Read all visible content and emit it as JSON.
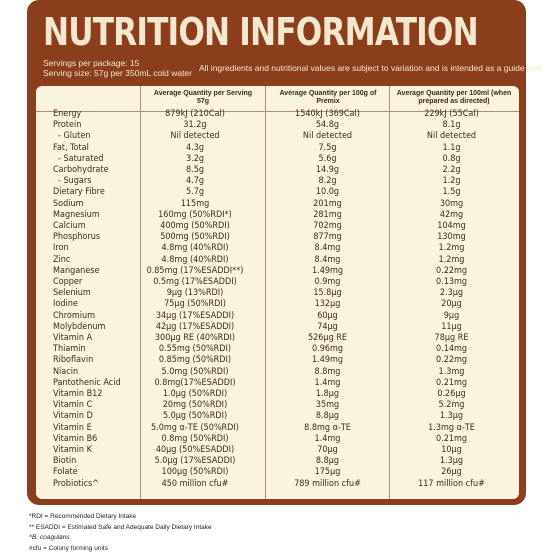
{
  "title": "NUTRITION INFORMATION",
  "servings_per_package": "Servings per package: 15",
  "serving_size": "Serving size: 57g per 350mL cold water",
  "disclaimer": "All ingredients and nutritional values are subject to variation and is intended as a guide only.",
  "colors": {
    "brand_brown": "#8a3e1c",
    "panel_cream": "#faf3df",
    "title_cream": "#f3e7cf"
  },
  "columns": [
    "Average Quantity per Serving 57g",
    "Average Quantity per 100g of Premix",
    "Average Quantity per 100ml (when prepared as directed)"
  ],
  "rows": [
    [
      "Energy",
      "879kJ (210Cal)",
      "1540kJ (369Cal)",
      "229kJ (55Cal)"
    ],
    [
      "Protein",
      "31.2g",
      "54.8g",
      "8.1g"
    ],
    [
      " - Gluten",
      "Nil detected",
      "Nil detected",
      "Nil detected"
    ],
    [
      "Fat, Total",
      "4.3g",
      "7.5g",
      "1.1g"
    ],
    [
      " - Saturated",
      "3.2g",
      "5.6g",
      "0.8g"
    ],
    [
      "Carbohydrate",
      "8.5g",
      "14.9g",
      "2.2g"
    ],
    [
      " - Sugars",
      "4.7g",
      "8.2g",
      "1.2g"
    ],
    [
      "Dietary Fibre",
      "5.7g",
      "10.0g",
      "1.5g"
    ],
    [
      "Sodium",
      "115mg",
      "201mg",
      "30mg"
    ],
    [
      "Magnesium",
      "160mg (50%RDI*)",
      "281mg",
      "42mg"
    ],
    [
      "Calcium",
      "400mg (50%RDI)",
      "702mg",
      "104mg"
    ],
    [
      "Phosphorus",
      "500mg (50%RDI)",
      "877mg",
      "130mg"
    ],
    [
      "Iron",
      "4.8mg (40%RDI)",
      "8.4mg",
      "1.2mg"
    ],
    [
      "Zinc",
      "4.8mg (40%RDI)",
      "8.4mg",
      "1.2mg"
    ],
    [
      "Manganese",
      "0.85mg (17%ESADDI**)",
      "1.49mg",
      "0.22mg"
    ],
    [
      "Copper",
      "0.5mg (17%ESADDI)",
      "0.9mg",
      "0.13mg"
    ],
    [
      "Selenium",
      "9µg (13%RDI)",
      "15.8µg",
      "2.3µg"
    ],
    [
      "Iodine",
      "75µg (50%RDI)",
      "132µg",
      "20µg"
    ],
    [
      "Chromium",
      "34µg (17%ESADDI)",
      "60µg",
      "9µg"
    ],
    [
      "Molybdenum",
      "42µg (17%ESADDI)",
      "74µg",
      "11µg"
    ],
    [
      "Vitamin A",
      "300µg RE (40%RDI)",
      "526µg RE",
      "78µg RE"
    ],
    [
      "Thiamin",
      "0.55mg (50%RDI)",
      "0.96mg",
      "0.14mg"
    ],
    [
      "Riboflavin",
      "0.85mg (50%RDI)",
      "1.49mg",
      "0.22mg"
    ],
    [
      "Niacin",
      "5.0mg (50%RDI)",
      "8.8mg",
      "1.3mg"
    ],
    [
      "Pantothenic Acid",
      "0.8mg(17%ESADDI)",
      "1.4mg",
      "0.21mg"
    ],
    [
      "Vitamin B12",
      "1.0µg (50%RDI)",
      "1.8µg",
      "0.26µg"
    ],
    [
      "Vitamin C",
      "20mg (50%RDI)",
      "35mg",
      "5.2mg"
    ],
    [
      "Vitamin D",
      "5.0µg (50%RDI)",
      "8.8µg",
      "1.3µg"
    ],
    [
      "Vitamin E",
      "5.0mg α-TE (50%RDI)",
      "8.8mg α-TE",
      "1.3mg α-TE"
    ],
    [
      "Vitamin B6",
      "0.8mg (50%RDI)",
      "1.4mg",
      "0.21mg"
    ],
    [
      "Vitamin K",
      "40µg (50%ESADDI)",
      "70µg",
      "10µg"
    ],
    [
      "Biotin",
      "5.0µg (17%ESADDI)",
      "8.8µg",
      "1.3µg"
    ],
    [
      "Folate",
      "100µg (50%RDI)",
      "175µg",
      "26µg"
    ],
    [
      "Probiotics^",
      "450 million cfu#",
      "789 million cfu#",
      "117 million cfu#"
    ]
  ],
  "footnotes": [
    "*RDI = Recommended Dietary Intake",
    "** ESADDI = Estimated Safe and Adequate Daily Dietary Intake",
    "^B. coagulans",
    "#cfu = Colony forming units"
  ]
}
